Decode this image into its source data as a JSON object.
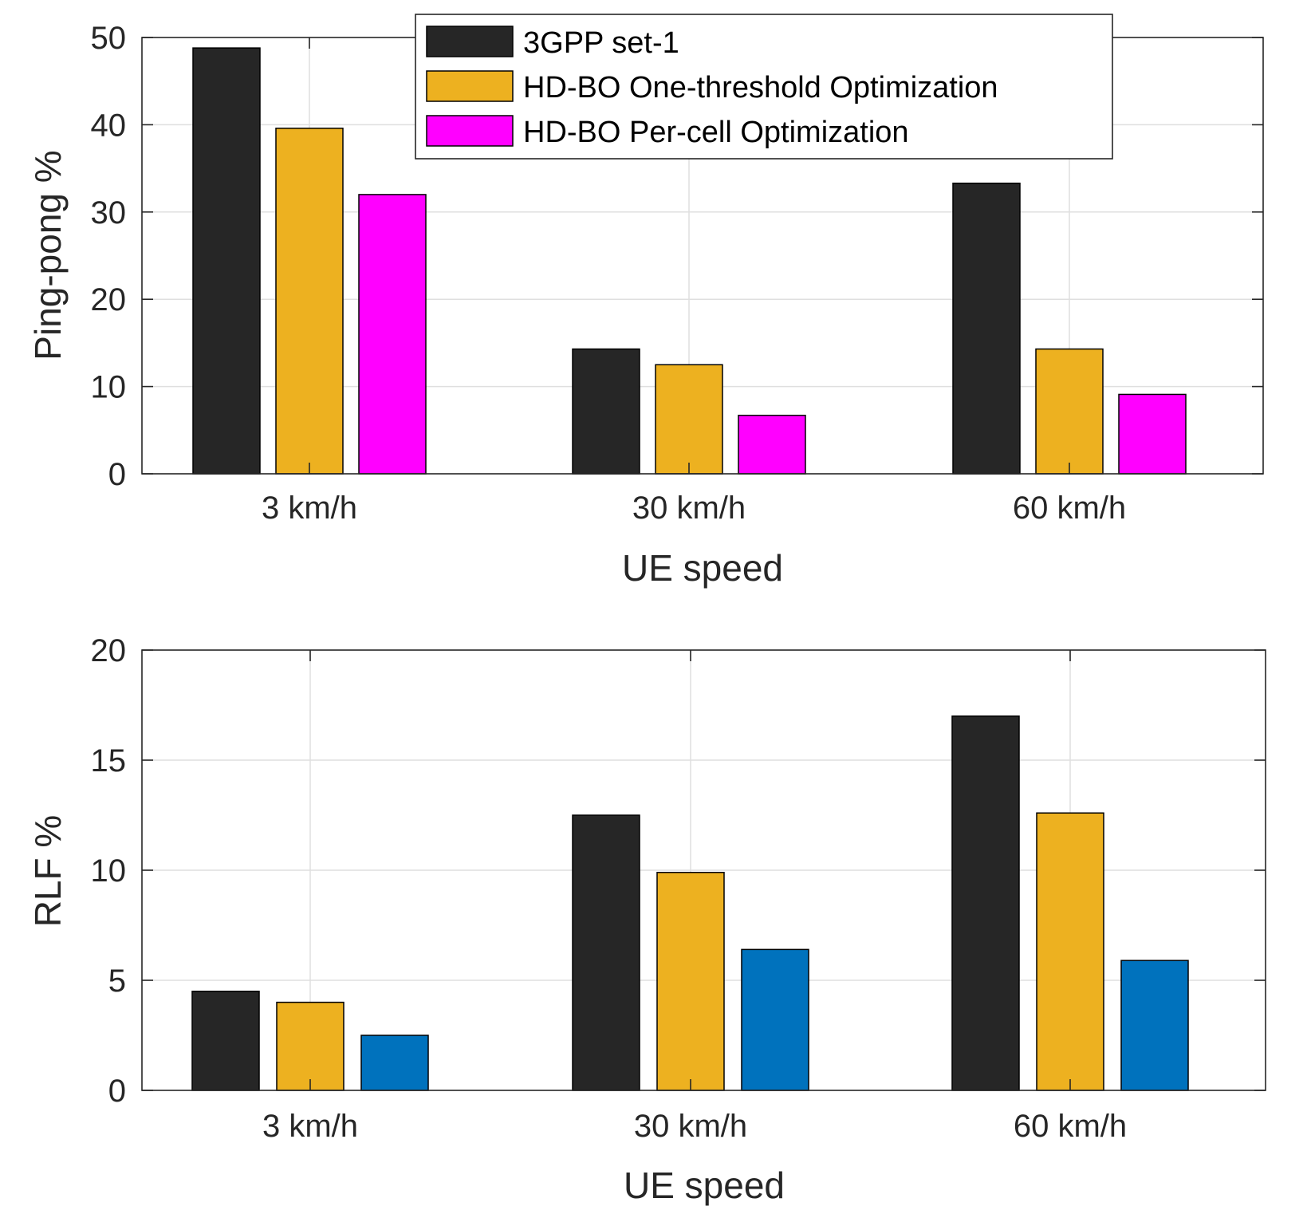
{
  "chart_data": [
    {
      "type": "bar",
      "id": "top",
      "categories": [
        "3 km/h",
        "30 km/h",
        "60 km/h"
      ],
      "series": [
        {
          "name": "3GPP set-1",
          "color": "#262626",
          "values": [
            48.8,
            14.3,
            33.3
          ]
        },
        {
          "name": "HD-BO One-threshold Optimization",
          "color": "#EDB120",
          "values": [
            39.6,
            12.5,
            14.3
          ]
        },
        {
          "name": "HD-BO Per-cell Optimization",
          "color": "#FF00FF",
          "values": [
            32.0,
            6.7,
            9.1
          ]
        }
      ],
      "xlabel": "UE speed",
      "ylabel": "Ping-pong %",
      "ylim": [
        0,
        50
      ],
      "yticks": [
        0,
        10,
        20,
        30,
        40,
        50
      ],
      "grid": true,
      "legend": {
        "placement": "top-center",
        "entries": [
          {
            "label": "3GPP set-1",
            "color": "#262626"
          },
          {
            "label": "HD-BO One-threshold Optimization",
            "color": "#EDB120"
          },
          {
            "label": "HD-BO Per-cell Optimization",
            "color": "#FF00FF"
          }
        ]
      }
    },
    {
      "type": "bar",
      "id": "bottom",
      "categories": [
        "3 km/h",
        "30 km/h",
        "60 km/h"
      ],
      "series": [
        {
          "name": "3GPP set-1",
          "color": "#262626",
          "values": [
            4.5,
            12.5,
            17.0
          ]
        },
        {
          "name": "HD-BO One-threshold Optimization",
          "color": "#EDB120",
          "values": [
            4.0,
            9.9,
            12.6
          ]
        },
        {
          "name": "HD-BO Per-cell Optimization",
          "color": "#0072BD",
          "values": [
            2.5,
            6.4,
            5.9
          ]
        }
      ],
      "xlabel": "UE speed",
      "ylabel": "RLF %",
      "ylim": [
        0,
        20
      ],
      "yticks": [
        0,
        5,
        10,
        15,
        20
      ],
      "grid": true
    }
  ]
}
